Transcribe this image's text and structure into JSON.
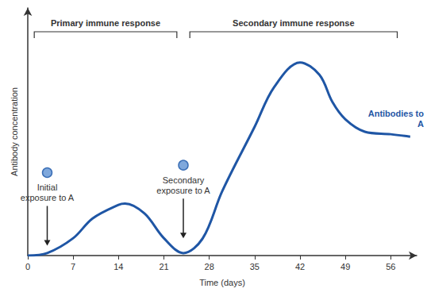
{
  "chart_data": {
    "type": "line",
    "x_label": "Time (days)",
    "y_label": "Antibody concentration",
    "x": [
      0,
      3,
      7,
      10,
      14,
      15,
      18,
      21,
      24,
      27,
      30,
      35,
      38,
      42,
      45,
      47,
      49,
      52,
      56,
      59
    ],
    "series": [
      {
        "name": "Antibodies to A",
        "color": "#1f56a5",
        "values": [
          0,
          1,
          7,
          15,
          20.5,
          21,
          17,
          7,
          1,
          7,
          26,
          52,
          68,
          78,
          73,
          62,
          55,
          50,
          49,
          48
        ]
      }
    ],
    "xlim": [
      0,
      60
    ],
    "xticks": [
      0,
      7,
      14,
      21,
      28,
      35,
      42,
      49,
      56
    ],
    "ylim": [
      0,
      100
    ],
    "tick_labels": "x",
    "grid": false,
    "spans": [
      {
        "text": "Primary immune response",
        "from": 1,
        "to": 23
      },
      {
        "text": "Secondary immune response",
        "from": 25,
        "to": 57
      }
    ],
    "annotations": [
      {
        "text": "Initial exposure to A",
        "x": 3,
        "y": 4
      },
      {
        "text": "Secondary exposure to A",
        "x": 24,
        "y": 7
      }
    ]
  }
}
